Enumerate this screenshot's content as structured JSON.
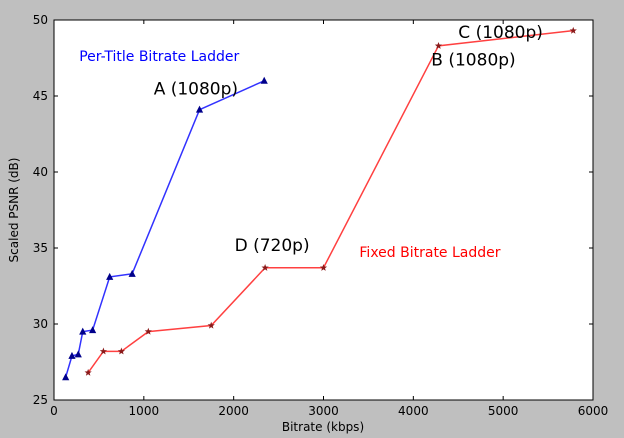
{
  "chart_data": {
    "type": "line",
    "xlabel": "Bitrate (kbps)",
    "ylabel": "Scaled PSNR (dB)",
    "xlim": [
      0,
      6000
    ],
    "ylim": [
      25,
      50
    ],
    "x_ticks": [
      0,
      1000,
      2000,
      3000,
      4000,
      5000,
      6000
    ],
    "y_ticks": [
      25,
      30,
      35,
      40,
      45,
      50
    ],
    "grid": false,
    "legend": "none",
    "series": [
      {
        "name": "Per-Title Bitrate Ladder",
        "color": "#3232ff",
        "marker_color": "#00008b",
        "marker": "triangle",
        "points": [
          [
            130,
            26.5
          ],
          [
            200,
            27.9
          ],
          [
            270,
            28.0
          ],
          [
            320,
            29.5
          ],
          [
            430,
            29.6
          ],
          [
            620,
            33.1
          ],
          [
            870,
            33.3
          ],
          [
            1620,
            44.1
          ],
          [
            2340,
            46.0
          ]
        ]
      },
      {
        "name": "Fixed Bitrate Ladder",
        "color": "#ff4040",
        "marker_color": "#8b1a1a",
        "marker": "star",
        "points": [
          [
            380,
            26.8
          ],
          [
            550,
            28.2
          ],
          [
            750,
            28.2
          ],
          [
            1050,
            29.5
          ],
          [
            1750,
            29.9
          ],
          [
            2350,
            33.7
          ],
          [
            3000,
            33.7
          ],
          [
            4280,
            48.3
          ],
          [
            5780,
            49.3
          ]
        ]
      }
    ],
    "annotations": [
      {
        "id": "label-per-title",
        "text": "Per-Title Bitrate Ladder",
        "x": 280,
        "y": 47.3,
        "color": "#0000ff",
        "size": 14
      },
      {
        "id": "label-fixed",
        "text": "Fixed Bitrate Ladder",
        "x": 3400,
        "y": 34.4,
        "color": "#ff0000",
        "size": 14
      },
      {
        "id": "label-a",
        "text": "A (1080p)",
        "x": 1020,
        "y": 45.1,
        "color": "#000000",
        "size": 17
      },
      {
        "id": "label-d",
        "text": "D (720p)",
        "x": 510,
        "y": 34.8,
        "color": "#000000",
        "size": 17
      },
      {
        "id": "label-b",
        "text": "B (1080p)",
        "x": 1000,
        "y": 47.0,
        "color": "#000000",
        "size": 17
      },
      {
        "id": "label-c",
        "text": "C (1080p)",
        "x": 1200,
        "y": 48.8,
        "color": "#000000",
        "size": 17
      }
    ]
  }
}
